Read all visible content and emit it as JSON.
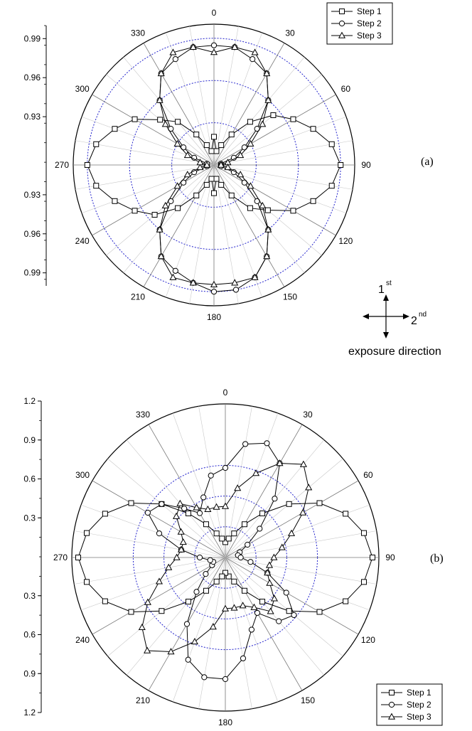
{
  "chart_data": [
    {
      "type": "polar-line",
      "panel_label": "(a)",
      "radial_ticks": [
        {
          "label": "0.99",
          "r": 0.99
        },
        {
          "label": "0.96",
          "r": 0.96
        },
        {
          "label": "0.93",
          "r": 0.93
        }
      ],
      "radial_axis_side": "left",
      "angular_direction": "clockwise from top",
      "angle_ticks": [
        "0",
        "30",
        "60",
        "90",
        "120",
        "150",
        "180",
        "210",
        "240",
        "270",
        "300",
        "330"
      ],
      "rlim": [
        0.9,
        1.0
      ],
      "legend_position": "top-right",
      "series": [
        {
          "name": "Step 1",
          "marker": "square",
          "angles": [
            0,
            10,
            20,
            30,
            40,
            50,
            60,
            70,
            80,
            90,
            100,
            110,
            120,
            130,
            140,
            150,
            160,
            170,
            180,
            190,
            200,
            210,
            220,
            230,
            240,
            250,
            260,
            270,
            280,
            290,
            300,
            310,
            320,
            330,
            340,
            350
          ],
          "values": [
            0.92,
            0.91,
            0.915,
            0.925,
            0.94,
            0.955,
            0.965,
            0.975,
            0.985,
            0.99,
            0.985,
            0.975,
            0.965,
            0.95,
            0.94,
            0.925,
            0.915,
            0.91,
            0.92,
            0.91,
            0.915,
            0.925,
            0.94,
            0.955,
            0.965,
            0.975,
            0.985,
            0.99,
            0.985,
            0.975,
            0.965,
            0.95,
            0.94,
            0.925,
            0.915,
            0.91
          ]
        },
        {
          "name": "Step 2",
          "marker": "circle",
          "angles": [
            0,
            10,
            20,
            30,
            40,
            50,
            60,
            70,
            80,
            90,
            100,
            110,
            120,
            130,
            140,
            150,
            160,
            170,
            180,
            190,
            200,
            210,
            220,
            230,
            240,
            250,
            260,
            270,
            280,
            290,
            300,
            310,
            320,
            330,
            340,
            350
          ],
          "values": [
            0.985,
            0.985,
            0.98,
            0.975,
            0.96,
            0.94,
            0.925,
            0.915,
            0.905,
            0.905,
            0.905,
            0.915,
            0.925,
            0.94,
            0.96,
            0.975,
            0.985,
            0.99,
            0.99,
            0.985,
            0.98,
            0.975,
            0.96,
            0.94,
            0.925,
            0.915,
            0.905,
            0.905,
            0.905,
            0.915,
            0.925,
            0.94,
            0.96,
            0.975,
            0.98,
            0.985
          ]
        },
        {
          "name": "Step 3",
          "marker": "triangle",
          "angles": [
            0,
            10,
            20,
            30,
            40,
            50,
            60,
            70,
            80,
            90,
            100,
            110,
            120,
            130,
            140,
            150,
            160,
            170,
            180,
            190,
            200,
            210,
            220,
            230,
            240,
            250,
            260,
            270,
            280,
            290,
            300,
            310,
            320,
            330,
            340,
            350
          ],
          "values": [
            0.98,
            0.985,
            0.985,
            0.975,
            0.96,
            0.945,
            0.93,
            0.92,
            0.91,
            0.905,
            0.91,
            0.92,
            0.93,
            0.945,
            0.96,
            0.975,
            0.985,
            0.985,
            0.985,
            0.985,
            0.985,
            0.975,
            0.96,
            0.945,
            0.93,
            0.92,
            0.91,
            0.905,
            0.91,
            0.92,
            0.93,
            0.945,
            0.96,
            0.975,
            0.985,
            0.985
          ]
        }
      ]
    },
    {
      "type": "polar-line",
      "panel_label": "(b)",
      "radial_ticks": [
        {
          "label": "1.2",
          "r": 1.2
        },
        {
          "label": "0.9",
          "r": 0.9
        },
        {
          "label": "0.6",
          "r": 0.6
        },
        {
          "label": "0.3",
          "r": 0.3
        }
      ],
      "radial_axis_side": "left",
      "angular_direction": "clockwise from top",
      "angle_ticks": [
        "0",
        "30",
        "60",
        "90",
        "120",
        "150",
        "180",
        "210",
        "240",
        "270",
        "300",
        "330"
      ],
      "rlim": [
        0,
        1.2
      ],
      "legend_position": "bottom-right",
      "series": [
        {
          "name": "Step 1",
          "marker": "square",
          "angles": [
            0,
            10,
            20,
            30,
            40,
            50,
            60,
            70,
            80,
            90,
            100,
            110,
            120,
            130,
            140,
            150,
            160,
            170,
            180,
            190,
            200,
            210,
            220,
            230,
            240,
            250,
            260,
            270,
            280,
            290,
            300,
            310,
            320,
            330,
            340,
            350
          ],
          "values": [
            0.12,
            0.15,
            0.2,
            0.3,
            0.45,
            0.65,
            0.85,
            1.0,
            1.1,
            1.15,
            1.1,
            1.0,
            0.85,
            0.65,
            0.45,
            0.3,
            0.2,
            0.15,
            0.12,
            0.15,
            0.2,
            0.3,
            0.45,
            0.65,
            0.85,
            1.0,
            1.1,
            1.15,
            1.1,
            1.0,
            0.85,
            0.65,
            0.45,
            0.3,
            0.2,
            0.15
          ]
        },
        {
          "name": "Step 2",
          "marker": "circle",
          "angles": [
            0,
            10,
            20,
            30,
            40,
            50,
            60,
            70,
            80,
            90,
            100,
            110,
            120,
            130,
            140,
            150,
            160,
            170,
            180,
            190,
            200,
            210,
            220,
            230,
            240,
            250,
            260,
            270,
            280,
            290,
            300,
            310,
            320,
            330,
            340,
            350
          ],
          "values": [
            0.7,
            0.9,
            0.95,
            0.85,
            0.6,
            0.35,
            0.2,
            0.12,
            0.1,
            0.12,
            0.2,
            0.35,
            0.55,
            0.7,
            0.65,
            0.5,
            0.6,
            0.8,
            0.95,
            0.95,
            0.85,
            0.6,
            0.35,
            0.2,
            0.12,
            0.1,
            0.12,
            0.2,
            0.35,
            0.55,
            0.7,
            0.65,
            0.5,
            0.4,
            0.5,
            0.65
          ]
        },
        {
          "name": "Step 3",
          "marker": "triangle",
          "angles": [
            0,
            10,
            20,
            30,
            40,
            50,
            60,
            70,
            80,
            90,
            100,
            110,
            120,
            130,
            140,
            150,
            160,
            170,
            180,
            190,
            200,
            210,
            220,
            230,
            240,
            250,
            260,
            270,
            280,
            290,
            300,
            310,
            320,
            330,
            340,
            350
          ],
          "values": [
            0.4,
            0.55,
            0.7,
            0.85,
            0.95,
            0.85,
            0.7,
            0.55,
            0.45,
            0.38,
            0.35,
            0.35,
            0.4,
            0.5,
            0.55,
            0.45,
            0.4,
            0.4,
            0.4,
            0.55,
            0.7,
            0.85,
            0.95,
            0.85,
            0.7,
            0.55,
            0.45,
            0.38,
            0.35,
            0.35,
            0.4,
            0.5,
            0.55,
            0.45,
            0.4,
            0.4
          ]
        }
      ]
    }
  ],
  "exposure": {
    "first": "1",
    "first_sup": "st",
    "second": "2",
    "second_sup": "nd",
    "caption": "exposure direction"
  }
}
